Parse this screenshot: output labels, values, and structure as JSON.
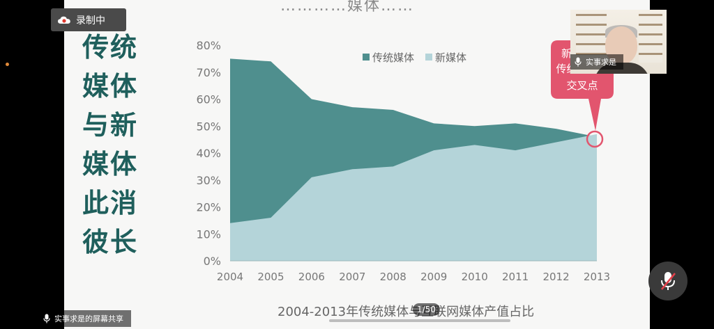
{
  "recording": {
    "label": "录制中"
  },
  "slide": {
    "top_title": "…………媒体……",
    "side_title": [
      "传统",
      "媒体",
      "与新",
      "媒体",
      "此消",
      "彼长"
    ],
    "caption": "2004-2013年传统媒体与互联网媒体产值占比",
    "callout": [
      "新媒体与",
      "传统媒体的",
      "交叉点"
    ],
    "page_indicator": "1/50"
  },
  "chart_data": {
    "type": "area",
    "title": "2004-2013年传统媒体与互联网媒体产值占比",
    "categories": [
      "2004",
      "2005",
      "2006",
      "2007",
      "2008",
      "2009",
      "2010",
      "2011",
      "2012",
      "2013"
    ],
    "series": [
      {
        "name": "传统媒体",
        "values": [
          75,
          74,
          60,
          57,
          56,
          51,
          50,
          51,
          49,
          46
        ],
        "color": "#4f8f8e"
      },
      {
        "name": "新媒体",
        "values": [
          14,
          16,
          31,
          34,
          35,
          41,
          43,
          41,
          44,
          47
        ],
        "color": "#b4d4d9"
      }
    ],
    "y_ticks": [
      "0%",
      "10%",
      "20%",
      "30%",
      "40%",
      "50%",
      "60%",
      "70%",
      "80%"
    ],
    "ylim": [
      0,
      80
    ],
    "legend_position": "top-center",
    "grid": false
  },
  "video": {
    "speaker_label": "实事求是",
    "share_label": "实事求是的屏幕共享"
  }
}
